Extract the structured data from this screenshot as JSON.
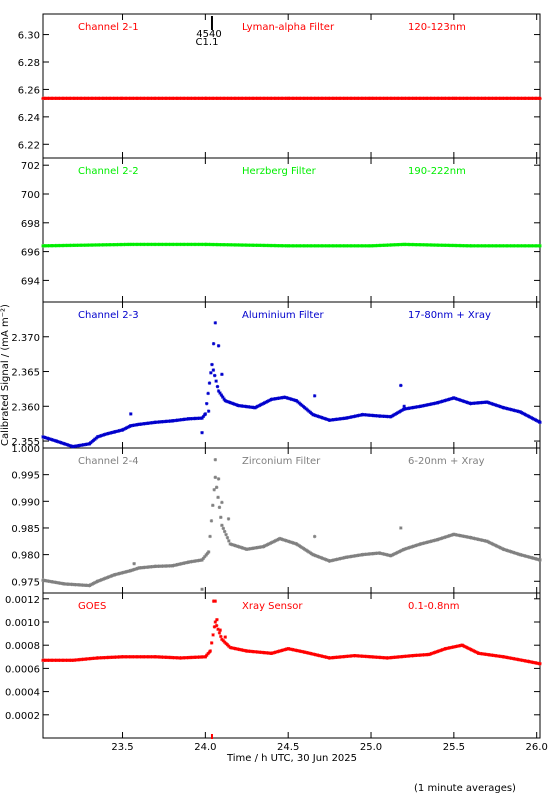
{
  "figure": {
    "x_axis_label": "Time / h UTC, 30 Jun 2025",
    "y_axis_label": "Calibrated Signal / (mA m⁻²)",
    "footnote": "(1 minute averages)",
    "event_marker": {
      "line1": "4540",
      "line2": "C1.1"
    }
  },
  "chart_data": [
    {
      "type": "scatter",
      "name": "Channel 2-1",
      "labels": [
        "Channel 2-1",
        "Lyman-alpha Filter",
        "120-123nm"
      ],
      "color": "#ff0000",
      "ylim": [
        6.21,
        6.315
      ],
      "yticks": [
        6.22,
        6.24,
        6.26,
        6.28,
        6.3
      ],
      "yticklabels": [
        "6.22",
        "6.24",
        "6.26",
        "6.28",
        "6.30"
      ],
      "xlim": [
        23.02,
        26.02
      ],
      "points": [
        [
          23.02,
          6.2535
        ],
        [
          23.5,
          6.2535
        ],
        [
          24.0,
          6.2535
        ],
        [
          24.5,
          6.2535
        ],
        [
          25.0,
          6.2535
        ],
        [
          25.5,
          6.2535
        ],
        [
          26.02,
          6.2535
        ]
      ]
    },
    {
      "type": "scatter",
      "name": "Channel 2-2",
      "labels": [
        "Channel 2-2",
        "Herzberg Filter",
        "190-222nm"
      ],
      "color": "#00ee00",
      "ylim": [
        692.5,
        702.5
      ],
      "yticks": [
        694,
        696,
        698,
        700,
        702
      ],
      "yticklabels": [
        "694",
        "696",
        "698",
        "700",
        "702"
      ],
      "xlim": [
        23.02,
        26.02
      ],
      "points": [
        [
          23.02,
          696.4
        ],
        [
          23.55,
          696.5
        ],
        [
          24.0,
          696.5
        ],
        [
          24.5,
          696.4
        ],
        [
          25.0,
          696.4
        ],
        [
          25.2,
          696.5
        ],
        [
          25.6,
          696.4
        ],
        [
          26.02,
          696.4
        ]
      ]
    },
    {
      "type": "scatter",
      "name": "Channel 2-3",
      "labels": [
        "Channel 2-3",
        "Aluminium Filter",
        "17-80nm + Xray"
      ],
      "color": "#0000cc",
      "ylim": [
        2.354,
        2.375
      ],
      "yticks": [
        2.355,
        2.36,
        2.365,
        2.37
      ],
      "yticklabels": [
        "2.355",
        "2.360",
        "2.365",
        "2.370"
      ],
      "xlim": [
        23.02,
        26.02
      ],
      "points": [
        [
          23.02,
          2.3556
        ],
        [
          23.1,
          2.355
        ],
        [
          23.2,
          2.3542
        ],
        [
          23.3,
          2.3546
        ],
        [
          23.35,
          2.3556
        ],
        [
          23.4,
          2.356
        ],
        [
          23.45,
          2.3563
        ],
        [
          23.5,
          2.3566
        ],
        [
          23.55,
          2.3572
        ],
        [
          23.6,
          2.3574
        ],
        [
          23.7,
          2.3577
        ],
        [
          23.8,
          2.3579
        ],
        [
          23.9,
          2.3582
        ],
        [
          23.98,
          2.3583
        ],
        [
          24.0,
          2.3589
        ],
        [
          24.04,
          2.366
        ],
        [
          24.08,
          2.3622
        ],
        [
          24.12,
          2.3608
        ],
        [
          24.2,
          2.3601
        ],
        [
          24.3,
          2.3598
        ],
        [
          24.4,
          2.361
        ],
        [
          24.48,
          2.3613
        ],
        [
          24.55,
          2.3608
        ],
        [
          24.65,
          2.3588
        ],
        [
          24.75,
          2.358
        ],
        [
          24.85,
          2.3583
        ],
        [
          24.95,
          2.3588
        ],
        [
          25.05,
          2.3586
        ],
        [
          25.12,
          2.3585
        ],
        [
          25.2,
          2.3596
        ],
        [
          25.3,
          2.36
        ],
        [
          25.4,
          2.3605
        ],
        [
          25.5,
          2.3612
        ],
        [
          25.6,
          2.3604
        ],
        [
          25.7,
          2.3606
        ],
        [
          25.8,
          2.3598
        ],
        [
          25.9,
          2.3592
        ],
        [
          26.02,
          2.3577
        ]
      ],
      "outliers": [
        [
          23.55,
          2.3589
        ],
        [
          23.98,
          2.3562
        ],
        [
          24.02,
          2.3593
        ],
        [
          24.05,
          2.369
        ],
        [
          24.06,
          2.372
        ],
        [
          24.08,
          2.3687
        ],
        [
          24.1,
          2.3646
        ],
        [
          24.66,
          2.3615
        ],
        [
          25.18,
          2.363
        ],
        [
          25.2,
          2.36
        ]
      ]
    },
    {
      "type": "scatter",
      "name": "Channel 2-4",
      "labels": [
        "Channel 2-4",
        "Zirconium Filter",
        "6-20nm + Xray"
      ],
      "color": "#808080",
      "ylim": [
        0.9728,
        1.0
      ],
      "yticks": [
        0.975,
        0.98,
        0.985,
        0.99,
        0.995,
        1.0
      ],
      "yticklabels": [
        "0.975",
        "0.980",
        "0.985",
        "0.990",
        "0.995",
        "1.000"
      ],
      "xlim": [
        23.02,
        26.02
      ],
      "points": [
        [
          23.02,
          0.9752
        ],
        [
          23.15,
          0.9745
        ],
        [
          23.3,
          0.9742
        ],
        [
          23.35,
          0.975
        ],
        [
          23.45,
          0.9762
        ],
        [
          23.55,
          0.977
        ],
        [
          23.6,
          0.9775
        ],
        [
          23.7,
          0.9778
        ],
        [
          23.8,
          0.9779
        ],
        [
          23.9,
          0.9786
        ],
        [
          23.98,
          0.979
        ],
        [
          24.02,
          0.9805
        ],
        [
          24.06,
          0.9945
        ],
        [
          24.1,
          0.9855
        ],
        [
          24.15,
          0.982
        ],
        [
          24.25,
          0.981
        ],
        [
          24.35,
          0.9815
        ],
        [
          24.45,
          0.983
        ],
        [
          24.55,
          0.982
        ],
        [
          24.65,
          0.98
        ],
        [
          24.75,
          0.9788
        ],
        [
          24.85,
          0.9795
        ],
        [
          24.95,
          0.98
        ],
        [
          25.05,
          0.9803
        ],
        [
          25.12,
          0.9798
        ],
        [
          25.2,
          0.981
        ],
        [
          25.3,
          0.982
        ],
        [
          25.4,
          0.9828
        ],
        [
          25.5,
          0.9838
        ],
        [
          25.6,
          0.9832
        ],
        [
          25.7,
          0.9825
        ],
        [
          25.8,
          0.981
        ],
        [
          25.9,
          0.98
        ],
        [
          26.02,
          0.979
        ]
      ],
      "outliers": [
        [
          23.57,
          0.9783
        ],
        [
          23.98,
          0.9735
        ],
        [
          24.06,
          0.9978
        ],
        [
          24.08,
          0.9942
        ],
        [
          24.1,
          0.9898
        ],
        [
          24.14,
          0.9867
        ],
        [
          24.66,
          0.9834
        ],
        [
          25.18,
          0.985
        ]
      ]
    },
    {
      "type": "scatter",
      "name": "GOES",
      "labels": [
        "GOES",
        "Xray Sensor",
        "0.1-0.8nm"
      ],
      "color": "#ff0000",
      "ylim": [
        0.0,
        0.00125
      ],
      "yticks": [
        0.0002,
        0.0004,
        0.0006,
        0.0008,
        0.001,
        0.0012
      ],
      "yticklabels": [
        "0.0002",
        "0.0004",
        "0.0006",
        "0.0008",
        "0.0010",
        "0.0012"
      ],
      "xlim": [
        23.02,
        26.02
      ],
      "points": [
        [
          23.02,
          0.00067
        ],
        [
          23.2,
          0.00067
        ],
        [
          23.35,
          0.00069
        ],
        [
          23.5,
          0.0007
        ],
        [
          23.7,
          0.0007
        ],
        [
          23.85,
          0.00069
        ],
        [
          24.0,
          0.0007
        ],
        [
          24.03,
          0.00075
        ],
        [
          24.06,
          0.001
        ],
        [
          24.1,
          0.00085
        ],
        [
          24.15,
          0.00078
        ],
        [
          24.25,
          0.00075
        ],
        [
          24.4,
          0.00073
        ],
        [
          24.5,
          0.00077
        ],
        [
          24.6,
          0.00074
        ],
        [
          24.75,
          0.00069
        ],
        [
          24.9,
          0.00071
        ],
        [
          25.0,
          0.0007
        ],
        [
          25.1,
          0.00069
        ],
        [
          25.25,
          0.00071
        ],
        [
          25.35,
          0.00072
        ],
        [
          25.45,
          0.00077
        ],
        [
          25.55,
          0.0008
        ],
        [
          25.65,
          0.00073
        ],
        [
          25.8,
          0.0007
        ],
        [
          25.95,
          0.00066
        ],
        [
          26.02,
          0.00064
        ]
      ],
      "outliers": [
        [
          24.05,
          0.00118
        ],
        [
          24.06,
          0.00118
        ],
        [
          24.07,
          0.00102
        ],
        [
          24.09,
          0.00093
        ],
        [
          24.12,
          0.00087
        ]
      ]
    }
  ],
  "xaxis": {
    "ticks": [
      23.5,
      24.0,
      24.5,
      25.0,
      25.5,
      26.0
    ],
    "ticklabels": [
      "23.5",
      "24.0",
      "24.5",
      "25.0",
      "25.5",
      "26.0"
    ],
    "marker_time": 24.04
  }
}
